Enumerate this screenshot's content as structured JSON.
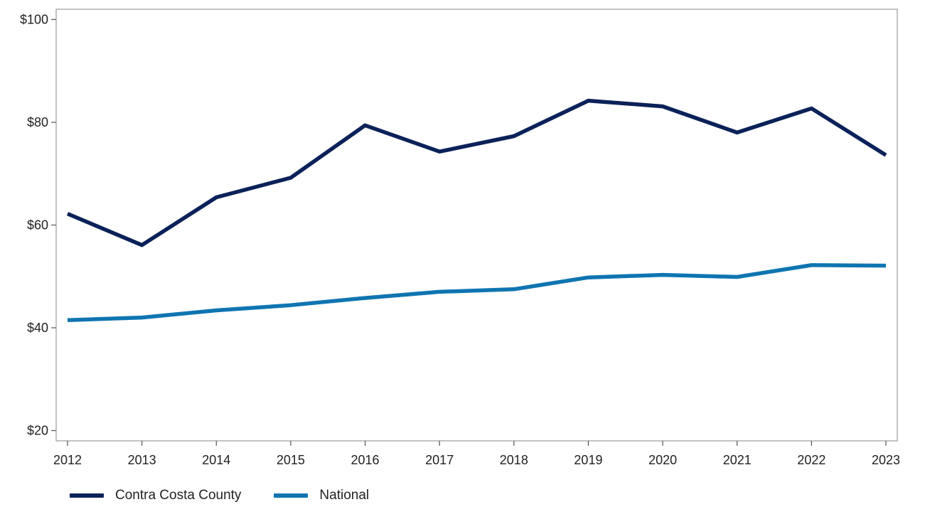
{
  "chart_data": {
    "type": "line",
    "title": "",
    "xlabel": "",
    "ylabel": "",
    "x": [
      2012,
      2013,
      2014,
      2015,
      2016,
      2017,
      2018,
      2019,
      2020,
      2021,
      2022,
      2023
    ],
    "ylim": [
      18,
      102
    ],
    "yticks": [
      20,
      40,
      60,
      80,
      100
    ],
    "ytick_labels": [
      "$20",
      "$40",
      "$60",
      "$80",
      "$100"
    ],
    "xtick_labels": [
      "2012",
      "2013",
      "2014",
      "2015",
      "2016",
      "2017",
      "2018",
      "2019",
      "2020",
      "2021",
      "2022",
      "2023"
    ],
    "grid": false,
    "legend_position": "bottom-left",
    "series": [
      {
        "name": "Contra Costa County",
        "color": "#0b2159",
        "values": [
          62.2,
          56.1,
          65.4,
          69.2,
          79.4,
          74.3,
          77.3,
          84.2,
          83.1,
          78.0,
          82.7,
          73.6
        ]
      },
      {
        "name": "National",
        "color": "#0f75b1",
        "values": [
          41.5,
          42.0,
          43.4,
          44.4,
          45.8,
          47.0,
          47.5,
          49.8,
          50.3,
          49.9,
          52.2,
          52.1
        ]
      }
    ]
  }
}
